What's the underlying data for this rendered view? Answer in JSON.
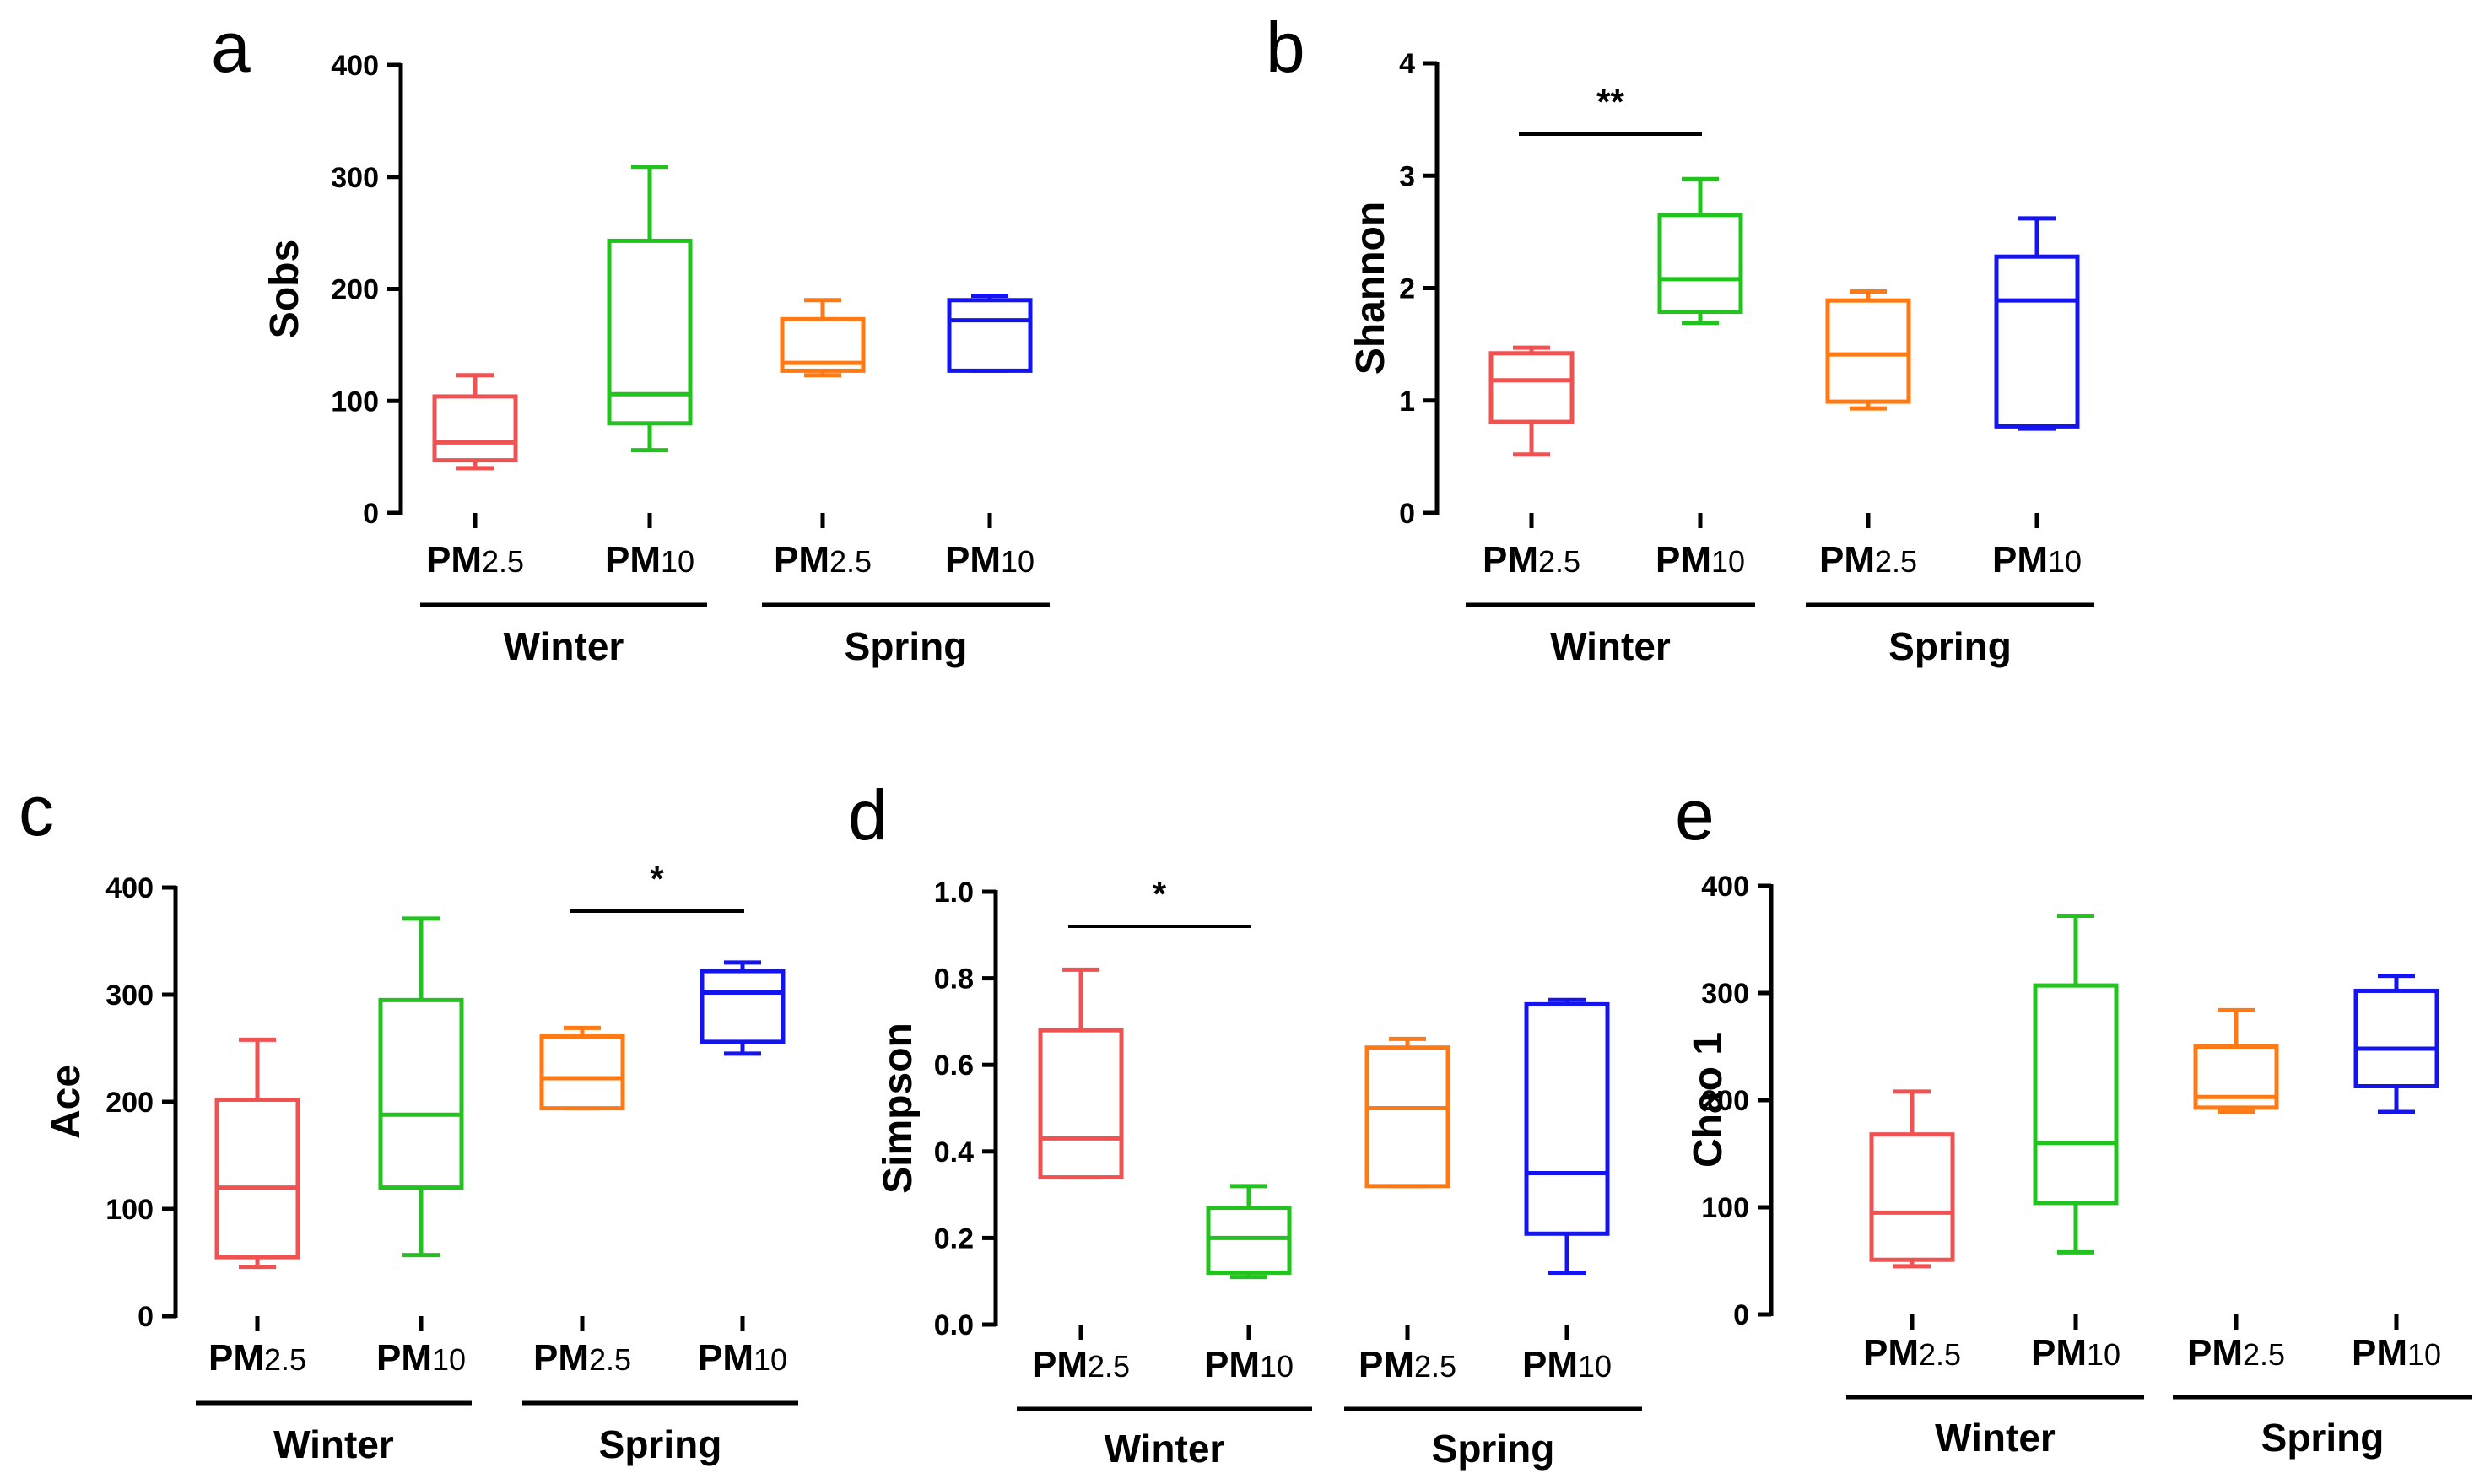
{
  "colors": {
    "winter_pm25": "#F05252",
    "winter_pm10": "#22C31E",
    "spring_pm25": "#FF7A14",
    "spring_pm10": "#1414F0",
    "axis": "#000000"
  },
  "chart_data": [
    {
      "type": "box",
      "panel": "a",
      "ylabel": "Sobs",
      "ylim": [
        0,
        400
      ],
      "yticks": [
        "0",
        "100",
        "200",
        "300",
        "400"
      ],
      "categories": [
        {
          "main": "PM",
          "sub": "2.5"
        },
        {
          "main": "PM",
          "sub": "10"
        },
        {
          "main": "PM",
          "sub": "2.5"
        },
        {
          "main": "PM",
          "sub": "10"
        }
      ],
      "groups": [
        "Winter",
        "Spring"
      ],
      "boxes": [
        {
          "min": 40,
          "q1": 47,
          "median": 63,
          "q3": 104,
          "max": 123
        },
        {
          "min": 56,
          "q1": 80,
          "median": 106,
          "q3": 243,
          "max": 309
        },
        {
          "min": 123,
          "q1": 127,
          "median": 134,
          "q3": 173,
          "max": 190
        },
        {
          "min": 127,
          "q1": 127,
          "median": 172,
          "q3": 190,
          "max": 194
        }
      ],
      "significance": null
    },
    {
      "type": "box",
      "panel": "b",
      "ylabel": "Shannon",
      "ylim": [
        0,
        4
      ],
      "yticks": [
        "0",
        "1",
        "2",
        "3",
        "4"
      ],
      "categories": [
        {
          "main": "PM",
          "sub": "2.5"
        },
        {
          "main": "PM",
          "sub": "10"
        },
        {
          "main": "PM",
          "sub": "2.5"
        },
        {
          "main": "PM",
          "sub": "10"
        }
      ],
      "groups": [
        "Winter",
        "Spring"
      ],
      "boxes": [
        {
          "min": 0.52,
          "q1": 0.81,
          "median": 1.18,
          "q3": 1.42,
          "max": 1.47
        },
        {
          "min": 1.69,
          "q1": 1.79,
          "median": 2.08,
          "q3": 2.65,
          "max": 2.97
        },
        {
          "min": 0.93,
          "q1": 0.99,
          "median": 1.41,
          "q3": 1.89,
          "max": 1.97
        },
        {
          "min": 0.75,
          "q1": 0.77,
          "median": 1.89,
          "q3": 2.28,
          "max": 2.62
        }
      ],
      "significance": {
        "from": 0,
        "to": 1,
        "label": "**",
        "y": 3.37
      }
    },
    {
      "type": "box",
      "panel": "c",
      "ylabel": "Ace",
      "ylim": [
        0,
        400
      ],
      "yticks": [
        "0",
        "100",
        "200",
        "300",
        "400"
      ],
      "categories": [
        {
          "main": "PM",
          "sub": "2.5"
        },
        {
          "main": "PM",
          "sub": "10"
        },
        {
          "main": "PM",
          "sub": "2.5"
        },
        {
          "main": "PM",
          "sub": "10"
        }
      ],
      "groups": [
        "Winter",
        "Spring"
      ],
      "boxes": [
        {
          "min": 46,
          "q1": 55,
          "median": 120,
          "q3": 202,
          "max": 258
        },
        {
          "min": 57,
          "q1": 120,
          "median": 188,
          "q3": 295,
          "max": 371
        },
        {
          "min": 194,
          "q1": 194,
          "median": 222,
          "q3": 261,
          "max": 269
        },
        {
          "min": 245,
          "q1": 256,
          "median": 302,
          "q3": 322,
          "max": 330
        }
      ],
      "significance": {
        "from": 2,
        "to": 3,
        "label": "*",
        "y": 378
      }
    },
    {
      "type": "box",
      "panel": "d",
      "ylabel": "Simpson",
      "ylim": [
        0,
        1.0
      ],
      "yticks": [
        "0.0",
        "0.2",
        "0.4",
        "0.6",
        "0.8",
        "1.0"
      ],
      "categories": [
        {
          "main": "PM",
          "sub": "2.5"
        },
        {
          "main": "PM",
          "sub": "10"
        },
        {
          "main": "PM",
          "sub": "2.5"
        },
        {
          "main": "PM",
          "sub": "10"
        }
      ],
      "groups": [
        "Winter",
        "Spring"
      ],
      "boxes": [
        {
          "min": 0.34,
          "q1": 0.34,
          "median": 0.43,
          "q3": 0.68,
          "max": 0.82
        },
        {
          "min": 0.11,
          "q1": 0.12,
          "median": 0.2,
          "q3": 0.27,
          "max": 0.32
        },
        {
          "min": 0.32,
          "q1": 0.32,
          "median": 0.5,
          "q3": 0.64,
          "max": 0.66
        },
        {
          "min": 0.12,
          "q1": 0.21,
          "median": 0.35,
          "q3": 0.74,
          "max": 0.75
        }
      ],
      "significance": {
        "from": 0,
        "to": 1,
        "label": "*",
        "y": 0.92
      }
    },
    {
      "type": "box",
      "panel": "e",
      "ylabel": "Chao 1",
      "ylim": [
        0,
        400
      ],
      "yticks": [
        "0",
        "100",
        "200",
        "300",
        "400"
      ],
      "categories": [
        {
          "main": "PM",
          "sub": "2.5"
        },
        {
          "main": "PM",
          "sub": "10"
        },
        {
          "main": "PM",
          "sub": "2.5"
        },
        {
          "main": "PM",
          "sub": "10"
        }
      ],
      "groups": [
        "Winter",
        "Spring"
      ],
      "boxes": [
        {
          "min": 45,
          "q1": 51,
          "median": 95,
          "q3": 168,
          "max": 208
        },
        {
          "min": 58,
          "q1": 104,
          "median": 160,
          "q3": 307,
          "max": 372
        },
        {
          "min": 189,
          "q1": 193,
          "median": 203,
          "q3": 250,
          "max": 284
        },
        {
          "min": 189,
          "q1": 213,
          "median": 248,
          "q3": 302,
          "max": 316
        }
      ],
      "significance": null
    }
  ]
}
